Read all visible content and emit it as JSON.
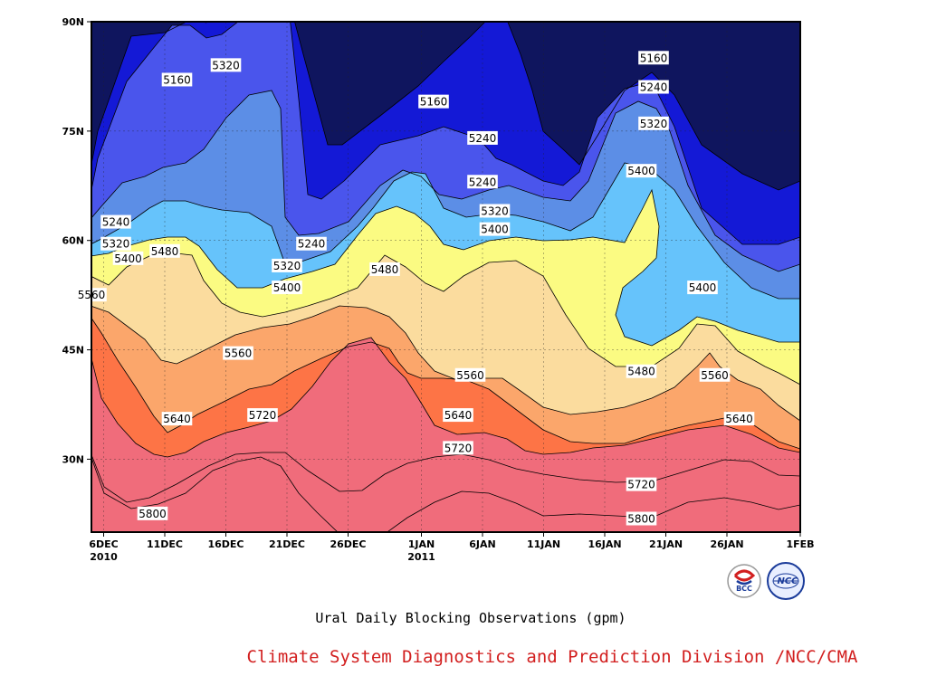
{
  "chart_data": {
    "type": "heatmap",
    "title": "Ural Daily Blocking Observations (gpm)",
    "credit": "Climate System Diagnostics and Prediction Division /NCC/CMA",
    "x_ticks": [
      {
        "date": "2010-12-06",
        "label": "6DEC",
        "sublabel": "2010"
      },
      {
        "date": "2010-12-11",
        "label": "11DEC",
        "sublabel": ""
      },
      {
        "date": "2010-12-16",
        "label": "16DEC",
        "sublabel": ""
      },
      {
        "date": "2010-12-21",
        "label": "21DEC",
        "sublabel": ""
      },
      {
        "date": "2010-12-26",
        "label": "26DEC",
        "sublabel": ""
      },
      {
        "date": "2011-01-01",
        "label": "1JAN",
        "sublabel": "2011"
      },
      {
        "date": "2011-01-06",
        "label": "6JAN",
        "sublabel": ""
      },
      {
        "date": "2011-01-11",
        "label": "11JAN",
        "sublabel": ""
      },
      {
        "date": "2011-01-16",
        "label": "16JAN",
        "sublabel": ""
      },
      {
        "date": "2011-01-21",
        "label": "21JAN",
        "sublabel": ""
      },
      {
        "date": "2011-01-26",
        "label": "26JAN",
        "sublabel": ""
      },
      {
        "date": "2011-02-01",
        "label": "1FEB",
        "sublabel": ""
      }
    ],
    "y_ticks": [
      {
        "lat": 30,
        "label": "30N"
      },
      {
        "lat": 45,
        "label": "45N"
      },
      {
        "lat": 60,
        "label": "60N"
      },
      {
        "lat": 75,
        "label": "75N"
      },
      {
        "lat": 90,
        "label": "90N"
      }
    ],
    "xlim": [
      "2010-12-05",
      "2011-02-01"
    ],
    "ylim": [
      20,
      90
    ],
    "grid": true,
    "levels": [
      5160,
      5240,
      5320,
      5400,
      5480,
      5560,
      5640,
      5720,
      5800
    ],
    "colors": [
      "#0f155e",
      "#1419d6",
      "#4a55ec",
      "#5c8ee6",
      "#66c3fb",
      "#fbfb82",
      "#fbdc9e",
      "#fba66b",
      "#fd7446",
      "#f06c7b"
    ],
    "contour_labels": [
      {
        "text": "5160",
        "date": "2010-12-12",
        "lat": 82
      },
      {
        "text": "5320",
        "date": "2010-12-16",
        "lat": 84
      },
      {
        "text": "5160",
        "date": "2011-01-02",
        "lat": 79
      },
      {
        "text": "5240",
        "date": "2011-01-06",
        "lat": 74
      },
      {
        "text": "5160",
        "date": "2011-01-20",
        "lat": 85
      },
      {
        "text": "5240",
        "date": "2011-01-20",
        "lat": 81
      },
      {
        "text": "5320",
        "date": "2011-01-20",
        "lat": 76
      },
      {
        "text": "5240",
        "date": "2011-01-06",
        "lat": 68
      },
      {
        "text": "5320",
        "date": "2011-01-07",
        "lat": 64
      },
      {
        "text": "5400",
        "date": "2011-01-07",
        "lat": 61.5
      },
      {
        "text": "5400",
        "date": "2011-01-19",
        "lat": 69.5
      },
      {
        "text": "5240",
        "date": "2010-12-07",
        "lat": 62.5
      },
      {
        "text": "5320",
        "date": "2010-12-07",
        "lat": 59.5
      },
      {
        "text": "5400",
        "date": "2010-12-08",
        "lat": 57.5
      },
      {
        "text": "5480",
        "date": "2010-12-11",
        "lat": 58.5
      },
      {
        "text": "5240",
        "date": "2010-12-23",
        "lat": 59.5
      },
      {
        "text": "5320",
        "date": "2010-12-21",
        "lat": 56.5
      },
      {
        "text": "5400",
        "date": "2010-12-21",
        "lat": 53.5
      },
      {
        "text": "5480",
        "date": "2010-12-29",
        "lat": 56
      },
      {
        "text": "5400",
        "date": "2011-01-24",
        "lat": 53.5
      },
      {
        "text": "5560",
        "date": "2010-12-05",
        "lat": 52.5
      },
      {
        "text": "5560",
        "date": "2010-12-17",
        "lat": 44.5
      },
      {
        "text": "5560",
        "date": "2011-01-05",
        "lat": 41.5
      },
      {
        "text": "5480",
        "date": "2011-01-19",
        "lat": 42
      },
      {
        "text": "5560",
        "date": "2011-01-25",
        "lat": 41.5
      },
      {
        "text": "5640",
        "date": "2010-12-12",
        "lat": 35.5
      },
      {
        "text": "5720",
        "date": "2010-12-19",
        "lat": 36
      },
      {
        "text": "5640",
        "date": "2011-01-04",
        "lat": 36
      },
      {
        "text": "5640",
        "date": "2011-01-27",
        "lat": 35.5
      },
      {
        "text": "5720",
        "date": "2011-01-04",
        "lat": 31.5
      },
      {
        "text": "5720",
        "date": "2011-01-19",
        "lat": 26.5
      },
      {
        "text": "5800",
        "date": "2010-12-10",
        "lat": 22.5
      },
      {
        "text": "5800",
        "date": "2011-01-19",
        "lat": 21.8
      }
    ]
  },
  "logos": [
    {
      "name": "bcc-logo",
      "text": "BCC"
    },
    {
      "name": "ncc-logo",
      "text": "NCC"
    }
  ]
}
